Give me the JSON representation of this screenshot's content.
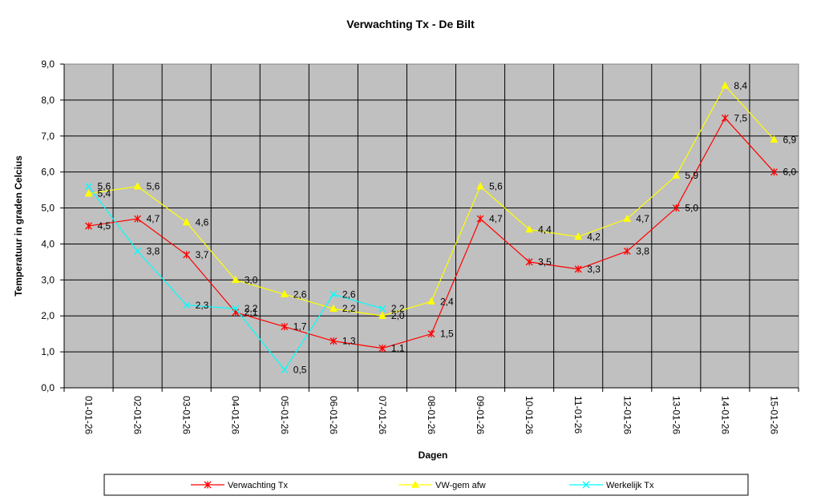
{
  "chart_data": {
    "type": "line",
    "title": "Verwachting Tx - De Bilt",
    "xlabel": "Dagen",
    "ylabel": "Temperatuur in graden Celcius",
    "categories": [
      "01-01-26",
      "02-01-26",
      "03-01-26",
      "04-01-26",
      "05-01-26",
      "06-01-26",
      "07-01-26",
      "08-01-26",
      "09-01-26",
      "10-01-26",
      "11-01-26",
      "12-01-26",
      "13-01-26",
      "14-01-26",
      "15-01-26"
    ],
    "ylim": [
      0,
      9
    ],
    "yticks": [
      "0,0",
      "1,0",
      "2,0",
      "3,0",
      "4,0",
      "5,0",
      "6,0",
      "7,0",
      "8,0",
      "9,0"
    ],
    "grid": true,
    "plot_background": "#c0c0c0",
    "legend_position": "bottom",
    "series": [
      {
        "name": "Verwachting Tx",
        "color": "#ff0000",
        "marker": "asterisk",
        "values": [
          4.5,
          4.7,
          3.7,
          2.1,
          1.7,
          1.3,
          1.1,
          1.5,
          4.7,
          3.5,
          3.3,
          3.8,
          5.0,
          7.5,
          6.0
        ],
        "labels": [
          "4,5",
          "4,7",
          "3,7",
          "2,1",
          "1,7",
          "1,3",
          "1,1",
          "1,5",
          "4,7",
          "3,5",
          "3,3",
          "3,8",
          "5,0",
          "7,5",
          "6,0"
        ]
      },
      {
        "name": "VW-gem afw",
        "color": "#ffff00",
        "marker": "triangle",
        "values": [
          5.4,
          5.6,
          4.6,
          3.0,
          2.6,
          2.2,
          2.0,
          2.4,
          5.6,
          4.4,
          4.2,
          4.7,
          5.9,
          8.4,
          6.9
        ],
        "labels": [
          "5,4",
          "5,6",
          "4,6",
          "3,0",
          "2,6",
          "2,2",
          "2,0",
          "2,4",
          "5,6",
          "4,4",
          "4,2",
          "4,7",
          "5,9",
          "8,4",
          "6,9"
        ]
      },
      {
        "name": "Werkelijk Tx",
        "color": "#00ffff",
        "marker": "x",
        "values": [
          5.6,
          3.8,
          2.3,
          2.2,
          0.5,
          2.6,
          2.2,
          null,
          null,
          null,
          null,
          null,
          null,
          null,
          null
        ],
        "labels": [
          "5,6",
          "3,8",
          "2,3",
          "2,2",
          "0,5",
          "2,6",
          "2,2",
          "",
          "",
          "",
          "",
          "",
          "",
          "",
          ""
        ]
      }
    ]
  }
}
